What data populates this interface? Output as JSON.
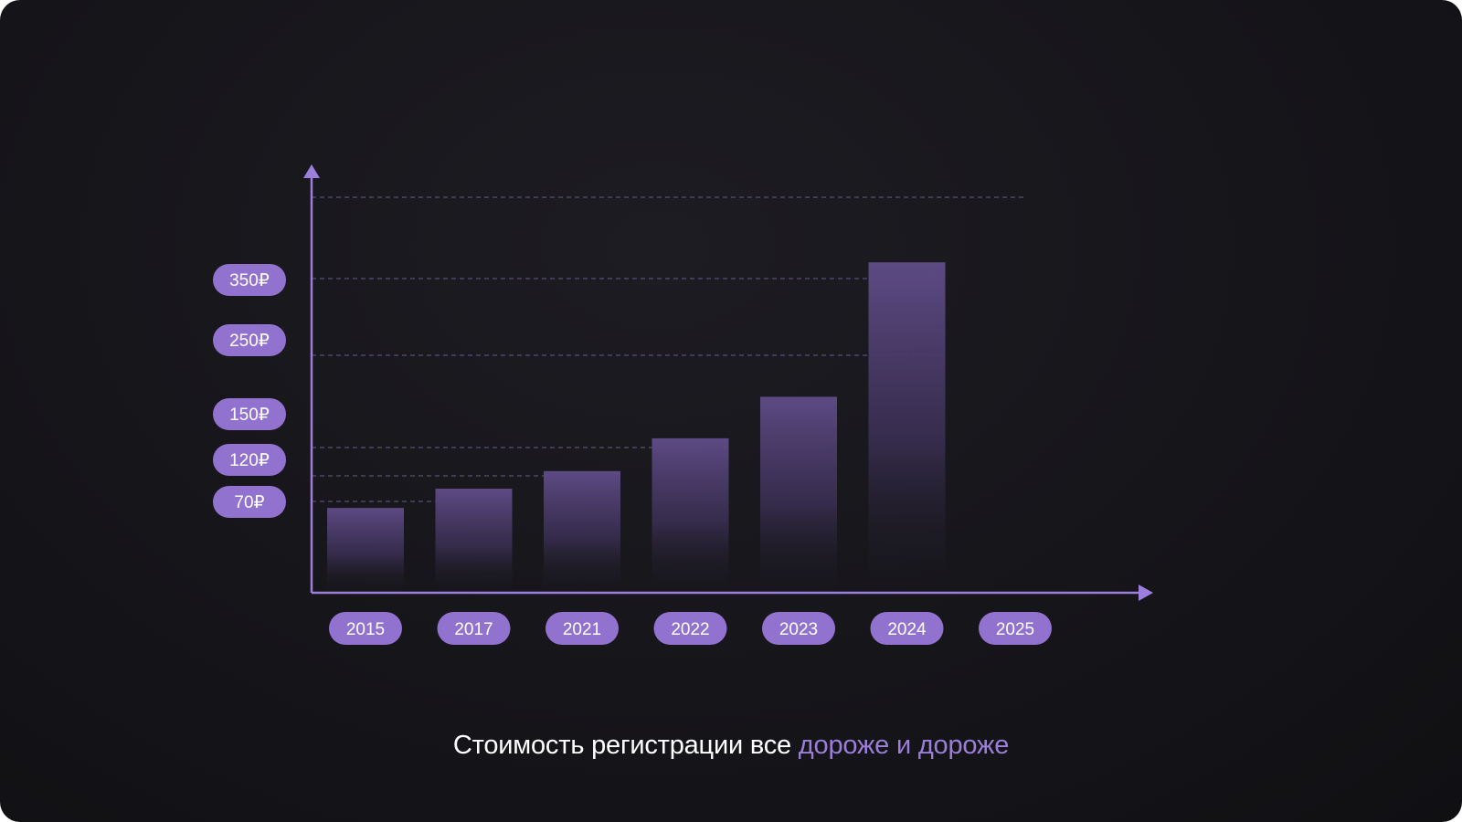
{
  "colors": {
    "accent": "#9a79d6",
    "pill": "#9272cf",
    "axis": "#9c7fdc",
    "bar_top": "#5d4a84",
    "gridline": "#6a5a8e"
  },
  "caption": {
    "main": "Стоимость регистрации все ",
    "accent": "дороже и дороже"
  },
  "chart_data": {
    "type": "bar",
    "categories": [
      "2015",
      "2017",
      "2021",
      "2022",
      "2023",
      "2024",
      "2025"
    ],
    "values": [
      65,
      95,
      125,
      160,
      205,
      360,
      null
    ],
    "y_ticks": [
      {
        "value": 70,
        "label": "70₽"
      },
      {
        "value": 120,
        "label": "120₽"
      },
      {
        "value": 150,
        "label": "150₽"
      },
      {
        "value": 250,
        "label": "250₽"
      },
      {
        "value": 350,
        "label": "350₽"
      }
    ],
    "title": "",
    "xlabel": "",
    "ylabel": "",
    "grid": "dashed-horizontal"
  }
}
